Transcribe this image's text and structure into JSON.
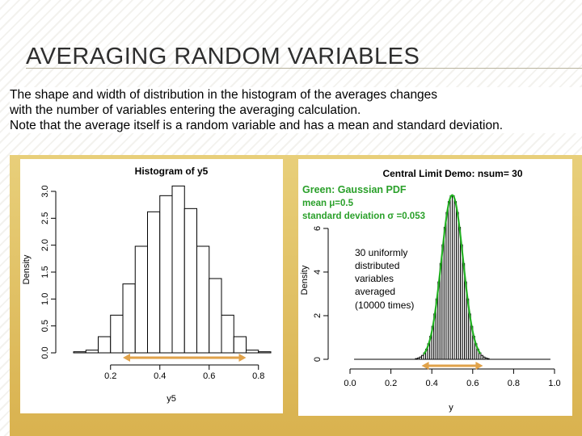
{
  "slide": {
    "title": "AVERAGING RANDOM VARIABLES",
    "body_lines": [
      "The shape and width of distribution in the histogram of the averages changes",
      "with the number of variables entering the averaging calculation.",
      "Note that the average itself is a random variable and has a mean and standard deviation."
    ]
  },
  "colors": {
    "panel": "#dcb955",
    "arrow": "#e0a24a",
    "gaussian": "#22b022",
    "legend_text": "#2aa02a"
  },
  "chart_data": [
    {
      "type": "bar",
      "title": "Histogram of y5",
      "xlabel": "y5",
      "ylabel": "Density",
      "bin_edges": [
        0.05,
        0.1,
        0.15,
        0.2,
        0.25,
        0.3,
        0.35,
        0.4,
        0.45,
        0.5,
        0.55,
        0.6,
        0.65,
        0.7,
        0.75,
        0.8,
        0.85
      ],
      "values": [
        0.02,
        0.05,
        0.3,
        0.7,
        1.28,
        1.98,
        2.62,
        2.92,
        3.1,
        2.68,
        1.98,
        1.38,
        0.7,
        0.3,
        0.05,
        0.02
      ],
      "xlim": [
        0.05,
        0.85
      ],
      "ylim": [
        0,
        3.0
      ],
      "xticks": [
        "0.2",
        "0.4",
        "0.6",
        "0.8"
      ],
      "xtick_values": [
        0.2,
        0.4,
        0.6,
        0.8
      ],
      "yticks": [
        "0.0",
        "0.5",
        "1.0",
        "1.5",
        "2.0",
        "2.5",
        "3.0"
      ],
      "ytick_values": [
        0,
        0.5,
        1.0,
        1.5,
        2.0,
        2.5,
        3.0
      ],
      "annotation_arrow": {
        "from": 0.25,
        "to": 0.75
      }
    },
    {
      "type": "bar",
      "title": "Central Limit Demo: nsum= 30",
      "xlabel": "y",
      "ylabel": "Density",
      "bin_width": 0.01,
      "xlim": [
        0,
        1.0
      ],
      "ylim": [
        0,
        7.7
      ],
      "xticks": [
        "0.0",
        "0.2",
        "0.4",
        "0.6",
        "0.8",
        "1.0"
      ],
      "xtick_values": [
        0,
        0.2,
        0.4,
        0.6,
        0.8,
        1.0
      ],
      "yticks": [
        "0",
        "2",
        "4",
        "6"
      ],
      "ytick_values": [
        0,
        2,
        4,
        6
      ],
      "series": [
        {
          "name": "Gaussian PDF",
          "mean": 0.5,
          "sd": 0.053
        }
      ],
      "legend": [
        "Green: Gaussian PDF",
        "mean μ=0.5",
        "standard deviation σ =0.053"
      ],
      "annotation_text": [
        "30 uniformly",
        "distributed",
        "variables",
        "averaged",
        "(10000 times)"
      ],
      "annotation_arrow": {
        "from": 0.35,
        "to": 0.65
      }
    }
  ]
}
